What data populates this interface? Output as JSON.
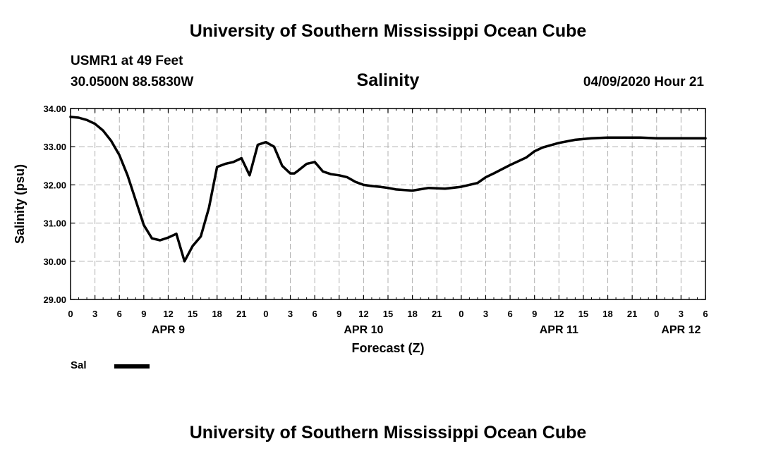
{
  "header": {
    "title": "University of Southern Mississippi Ocean Cube",
    "station": "USMR1 at 49 Feet",
    "coordinates": "30.0500N 88.5830W",
    "chart_title": "Salinity",
    "run_time": "04/09/2020 Hour 21"
  },
  "legend": {
    "label": "Sal",
    "color": "#000000"
  },
  "footer": {
    "title": "University of Southern Mississippi Ocean Cube"
  },
  "chart_data": {
    "type": "line",
    "title": "Salinity",
    "xlabel": "Forecast (Z)",
    "ylabel": "Salinity (psu)",
    "ylim": [
      29.0,
      34.0
    ],
    "yticks": [
      "29.00",
      "30.00",
      "31.00",
      "32.00",
      "33.00",
      "34.00"
    ],
    "xlim": [
      0,
      78
    ],
    "xticks": [
      "0",
      "3",
      "6",
      "9",
      "12",
      "15",
      "18",
      "21",
      "0",
      "3",
      "6",
      "9",
      "12",
      "15",
      "18",
      "21",
      "0",
      "3",
      "6",
      "9",
      "12",
      "15",
      "18",
      "21",
      "0",
      "3",
      "6"
    ],
    "day_labels": [
      {
        "label": "APR 9",
        "at": 12
      },
      {
        "label": "APR 10",
        "at": 36
      },
      {
        "label": "APR 11",
        "at": 60
      },
      {
        "label": "APR 12",
        "at": 75
      }
    ],
    "grid": true,
    "series": [
      {
        "name": "Sal",
        "color": "#000000",
        "x": [
          0,
          1,
          2,
          3,
          4,
          5,
          6,
          7,
          8,
          9,
          10,
          11,
          12,
          13,
          14,
          15,
          16,
          17,
          18,
          19,
          20,
          21,
          22,
          23,
          24,
          25,
          26,
          27,
          27.5,
          28,
          29,
          30,
          31,
          32,
          33,
          34,
          35,
          36,
          37,
          38,
          39,
          40,
          42,
          44,
          46,
          48,
          50,
          51,
          52,
          54,
          56,
          57,
          58,
          60,
          62,
          64,
          66,
          68,
          70,
          72,
          74,
          76,
          78
        ],
        "y": [
          33.78,
          33.76,
          33.7,
          33.6,
          33.42,
          33.15,
          32.78,
          32.25,
          31.6,
          30.95,
          30.6,
          30.55,
          30.62,
          30.72,
          30.0,
          30.4,
          30.65,
          31.4,
          32.47,
          32.55,
          32.6,
          32.7,
          32.25,
          33.05,
          33.12,
          33.0,
          32.5,
          32.3,
          32.3,
          32.38,
          32.55,
          32.6,
          32.35,
          32.28,
          32.25,
          32.2,
          32.08,
          32.0,
          31.97,
          31.95,
          31.92,
          31.88,
          31.85,
          31.92,
          31.9,
          31.95,
          32.05,
          32.2,
          32.3,
          32.52,
          32.72,
          32.88,
          32.98,
          33.1,
          33.18,
          33.22,
          33.24,
          33.24,
          33.24,
          33.22,
          33.22,
          33.22,
          33.22
        ]
      }
    ]
  }
}
